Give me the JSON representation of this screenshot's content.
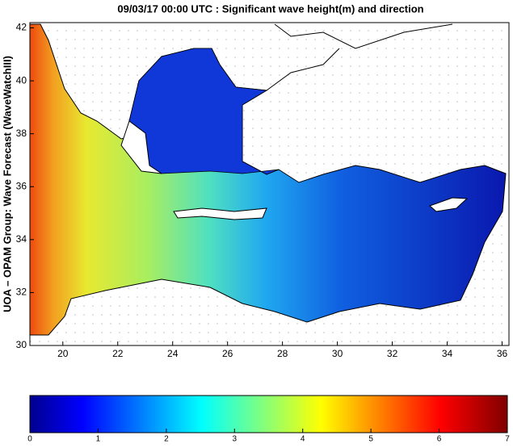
{
  "title": "09/03/17 00:00 UTC : Significant wave height(m) and direction",
  "y_axis_label": "UOA – OPAM Group: Wave Forecast (WaveWatchIII)",
  "map": {
    "xlim": [
      18.8,
      36.25
    ],
    "ylim": [
      30,
      42.2
    ],
    "xticks": [
      20,
      22,
      24,
      26,
      28,
      30,
      32,
      34,
      36
    ],
    "yticks": [
      30,
      32,
      34,
      36,
      38,
      40,
      42
    ]
  },
  "colorbar": {
    "lim": [
      0,
      7
    ],
    "ticks": [
      0,
      1,
      2,
      3,
      4,
      5,
      6,
      7
    ]
  }
}
